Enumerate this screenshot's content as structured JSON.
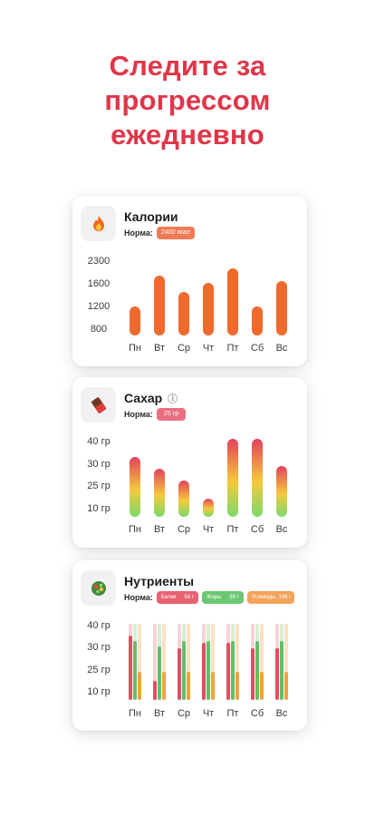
{
  "headline": {
    "line1": "Следите за",
    "line2": "прогрессом",
    "line3": "ежедневно"
  },
  "days": [
    "Пн",
    "Вт",
    "Ср",
    "Чт",
    "Пт",
    "Сб",
    "Вс"
  ],
  "calories": {
    "title": "Калории",
    "icon": "fire-icon",
    "norm_label": "Норма:",
    "norm_value": "2400 ккал",
    "y_ticks": [
      "2300",
      "1600",
      "1200",
      "800"
    ],
    "accent": "#ef6a2c"
  },
  "sugar": {
    "title": "Сахар",
    "icon": "chocolate-icon",
    "info_icon": "info-icon",
    "norm_label": "Норма:",
    "norm_value": "25 гр",
    "y_ticks": [
      "40 гр",
      "30 гр",
      "25 гр",
      "10 гр"
    ],
    "gradient": [
      "#e2425c",
      "#f6c93c",
      "#7bd96b"
    ]
  },
  "nutrients": {
    "title": "Нутриенты",
    "icon": "salad-icon",
    "norm_label": "Норма:",
    "protein": {
      "label": "Белки",
      "value": "56 г",
      "color": "#e24d62"
    },
    "fat": {
      "label": "Жиры",
      "value": "98 г",
      "color": "#5fc06a"
    },
    "carbs": {
      "label": "Углеводы",
      "value": "198 г",
      "color": "#f2a23d"
    },
    "y_ticks": [
      "40 гр",
      "30 гр",
      "25 гр",
      "10 гр"
    ]
  },
  "chart_data": [
    {
      "type": "bar",
      "title": "Калории",
      "categories": [
        "Пн",
        "Вт",
        "Ср",
        "Чт",
        "Пт",
        "Сб",
        "Вс"
      ],
      "values": [
        1250,
        2100,
        1650,
        1900,
        2300,
        1250,
        1950
      ],
      "y_ticks": [
        800,
        1200,
        1600,
        2300
      ]
    },
    {
      "type": "bar",
      "title": "Сахар",
      "categories": [
        "Пн",
        "Вт",
        "Ср",
        "Чт",
        "Пт",
        "Сб",
        "Вс"
      ],
      "values": [
        34,
        29,
        24,
        16,
        42,
        42,
        30
      ],
      "y_ticks": [
        10,
        25,
        30,
        40
      ]
    },
    {
      "type": "bar",
      "title": "Нутриенты",
      "categories": [
        "Пн",
        "Вт",
        "Ср",
        "Чт",
        "Пт",
        "Сб",
        "Вс"
      ],
      "series": [
        {
          "name": "Белки",
          "values": [
            34,
            10,
            27,
            30,
            30,
            27,
            27
          ],
          "norm": 40
        },
        {
          "name": "Жиры",
          "values": [
            31,
            28,
            31,
            31,
            31,
            31,
            31
          ],
          "norm": 40
        },
        {
          "name": "Углеводы",
          "values": [
            15,
            15,
            15,
            15,
            15,
            15,
            15
          ],
          "norm": 40
        }
      ],
      "y_ticks": [
        10,
        25,
        30,
        40
      ]
    }
  ]
}
